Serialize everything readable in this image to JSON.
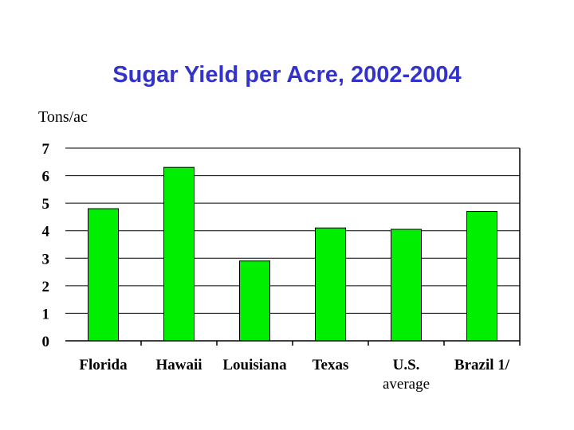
{
  "chart_data": {
    "type": "bar",
    "title": "Sugar Yield per Acre, 2002-2004",
    "ylabel": "Tons/ac",
    "xlabel": "",
    "categories": [
      [
        "Florida"
      ],
      [
        "Hawaii"
      ],
      [
        "Louisiana"
      ],
      [
        "Texas"
      ],
      [
        "U.S.",
        "average"
      ],
      [
        "Brazil 1/"
      ]
    ],
    "values": [
      4.8,
      6.3,
      2.9,
      4.1,
      4.05,
      4.7
    ],
    "ylim": [
      0,
      7
    ],
    "yticks": [
      0,
      1,
      2,
      3,
      4,
      5,
      6,
      7
    ],
    "grid": true,
    "bar_color": "#00ee00",
    "grid_color": "#000000"
  }
}
